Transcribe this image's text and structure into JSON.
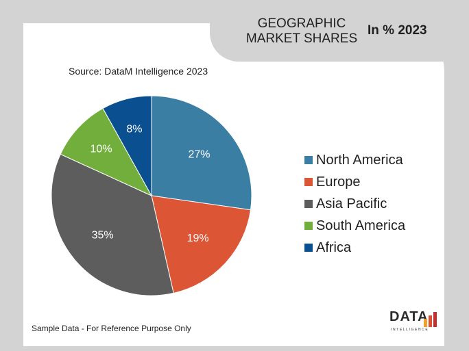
{
  "header": {
    "title": "GEOGRAPHIC MARKET SHARES",
    "year_label": "In % 2023"
  },
  "source": "Source: DataM Intelligence  2023",
  "footer": {
    "note": "Sample Data - For Reference Purpose Only"
  },
  "logo": {
    "word": "DATA",
    "sub": "INTELLIGENCE",
    "bar_colors": [
      "#f0a030",
      "#e05030",
      "#c03030"
    ]
  },
  "colors": {
    "frame": "#d3d3d3",
    "card": "#ffffff",
    "slice_text": "#ffffff"
  },
  "chart_data": {
    "type": "pie",
    "title": "",
    "start_angle_deg": 0,
    "direction": "clockwise",
    "legend_position": "right",
    "slices": [
      {
        "label": "North America",
        "value": 27,
        "value_label": "27%",
        "color": "#3a7ea3"
      },
      {
        "label": "Europe",
        "value": 19,
        "value_label": "19%",
        "color": "#dc5535"
      },
      {
        "label": "Asia Pacific",
        "value": 35,
        "value_label": "35%",
        "color": "#5d5d5d"
      },
      {
        "label": "South America",
        "value": 10,
        "value_label": "10%",
        "color": "#72ae3c"
      },
      {
        "label": "Africa",
        "value": 8,
        "value_label": "8%",
        "color": "#0a4f90"
      }
    ]
  }
}
